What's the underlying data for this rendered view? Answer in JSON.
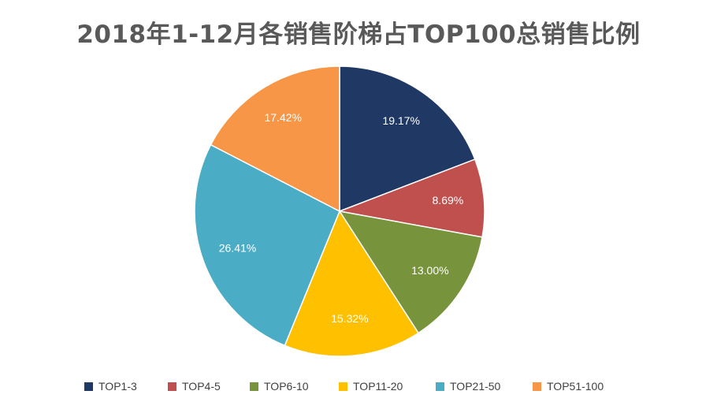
{
  "chart_data": {
    "type": "pie",
    "title": "2018年1-12月各销售阶梯占TOP100总销售比例",
    "legend_position": "bottom",
    "series": [
      {
        "name": "TOP1-3",
        "value": 19.17,
        "label": "19.17%",
        "color": "#1F3864"
      },
      {
        "name": "TOP4-5",
        "value": 8.69,
        "label": "8.69%",
        "color": "#C0504D"
      },
      {
        "name": "TOP6-10",
        "value": 13.0,
        "label": "13.00%",
        "color": "#77933C"
      },
      {
        "name": "TOP11-20",
        "value": 15.32,
        "label": "15.32%",
        "color": "#FFC000"
      },
      {
        "name": "TOP21-50",
        "value": 26.41,
        "label": "26.41%",
        "color": "#4BACC6"
      },
      {
        "name": "TOP51-100",
        "value": 17.42,
        "label": "17.42%",
        "color": "#F79646"
      }
    ]
  }
}
